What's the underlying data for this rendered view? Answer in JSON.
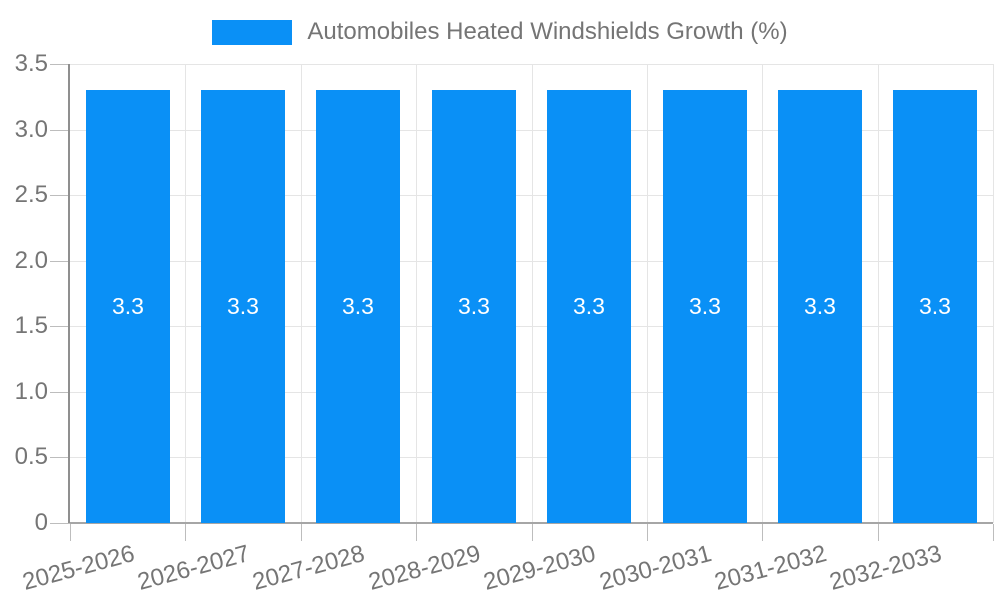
{
  "chart_data": {
    "type": "bar",
    "title": "Automobiles Heated Windshields Growth (%)",
    "legend_position": "top",
    "categories": [
      "2025-2026",
      "2026-2027",
      "2027-2028",
      "2028-2029",
      "2029-2030",
      "2030-2031",
      "2031-2032",
      "2032-2033"
    ],
    "series": [
      {
        "name": "Automobiles Heated Windshields Growth (%)",
        "values": [
          3.3,
          3.3,
          3.3,
          3.3,
          3.3,
          3.3,
          3.3,
          3.3
        ]
      }
    ],
    "value_labels": [
      "3.3",
      "3.3",
      "3.3",
      "3.3",
      "3.3",
      "3.3",
      "3.3",
      "3.3"
    ],
    "xlabel": "",
    "ylabel": "",
    "ylim": [
      0,
      3.5
    ],
    "ytick_interval": 0.5,
    "yticks": [
      "0",
      "0.5",
      "1.0",
      "1.5",
      "2.0",
      "2.5",
      "3.0",
      "3.5"
    ],
    "grid": true,
    "x_label_rotation_deg": -15,
    "colors": {
      "bar": "#0a90f6",
      "bar_value_label": "#ffffff",
      "axis_text": "#757575",
      "grid_line": "#e5e5e5",
      "y_axis_line": "#8f8f8f",
      "x_axis_line": "#a6a6a6",
      "tick_line": "#bdbdbd",
      "background": "#ffffff"
    }
  }
}
